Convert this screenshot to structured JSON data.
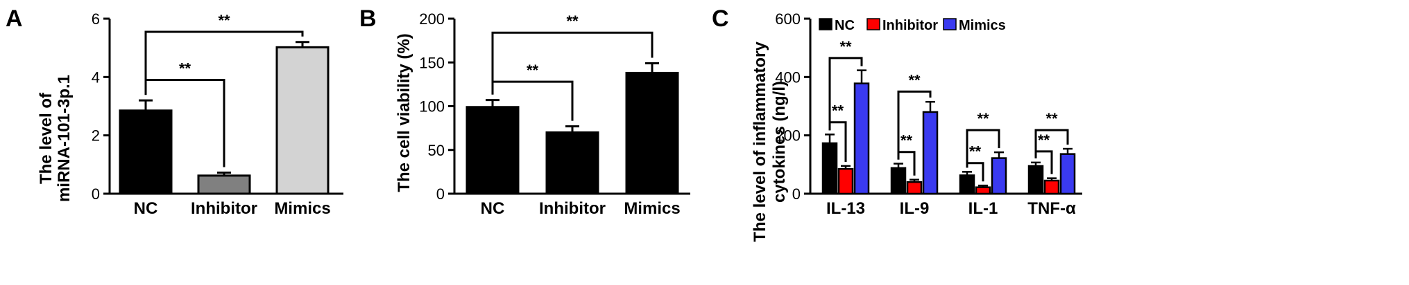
{
  "chart_data": [
    {
      "type": "bar",
      "panel": "A",
      "ylabel_lines": [
        "The level of",
        "miRNA-101-3p.1"
      ],
      "ylim": [
        0,
        6
      ],
      "yticks": [
        0,
        2,
        4,
        6
      ],
      "categories": [
        "NC",
        "Inhibitor",
        "Mimics"
      ],
      "values": [
        2.85,
        0.62,
        5.02
      ],
      "errors": [
        0.35,
        0.1,
        0.18
      ],
      "colors": [
        "#000000",
        "#808080",
        "#d3d3d3"
      ],
      "significance": [
        {
          "from": 0,
          "to": 1,
          "label": "**",
          "level": 3.9
        },
        {
          "from": 0,
          "to": 2,
          "label": "**",
          "level": 5.55
        }
      ]
    },
    {
      "type": "bar",
      "panel": "B",
      "ylabel": "The cell viability (%)",
      "ylim": [
        0,
        200
      ],
      "yticks": [
        0,
        50,
        100,
        150,
        200
      ],
      "categories": [
        "NC",
        "Inhibitor",
        "Mimics"
      ],
      "values": [
        99,
        70,
        138
      ],
      "errors": [
        8,
        7,
        11
      ],
      "colors": [
        "#000000",
        "#000000",
        "#000000"
      ],
      "significance": [
        {
          "from": 0,
          "to": 1,
          "label": "**",
          "level": 128
        },
        {
          "from": 0,
          "to": 2,
          "label": "**",
          "level": 184
        }
      ]
    },
    {
      "type": "bar",
      "panel": "C",
      "ylabel_lines": [
        "The level of inflammatory",
        "cytokines (ng/l)"
      ],
      "ylim": [
        0,
        600
      ],
      "yticks": [
        0,
        200,
        400,
        600
      ],
      "categories": [
        "IL-13",
        "IL-9",
        "IL-1",
        "TNF-α"
      ],
      "series": [
        {
          "name": "NC",
          "color": "#000000",
          "values": [
            173,
            88,
            63,
            95
          ],
          "errors": [
            30,
            15,
            12,
            12
          ]
        },
        {
          "name": "Inhibitor",
          "color": "#ff0000",
          "values": [
            85,
            40,
            22,
            45
          ],
          "errors": [
            10,
            8,
            6,
            8
          ]
        },
        {
          "name": "Mimics",
          "color": "#3a3af0",
          "values": [
            378,
            280,
            122,
            136
          ],
          "errors": [
            45,
            35,
            20,
            18
          ]
        }
      ],
      "significance": [
        {
          "group": 0,
          "from": 0,
          "to": 1,
          "label": "**",
          "level": 245
        },
        {
          "group": 0,
          "from": 0,
          "to": 2,
          "label": "**",
          "level": 465
        },
        {
          "group": 1,
          "from": 0,
          "to": 1,
          "label": "**",
          "level": 143
        },
        {
          "group": 1,
          "from": 0,
          "to": 2,
          "label": "**",
          "level": 350
        },
        {
          "group": 2,
          "from": 0,
          "to": 1,
          "label": "**",
          "level": 105
        },
        {
          "group": 2,
          "from": 0,
          "to": 2,
          "label": "**",
          "level": 218
        },
        {
          "group": 3,
          "from": 0,
          "to": 1,
          "label": "**",
          "level": 145
        },
        {
          "group": 3,
          "from": 0,
          "to": 2,
          "label": "**",
          "level": 218
        }
      ]
    }
  ]
}
